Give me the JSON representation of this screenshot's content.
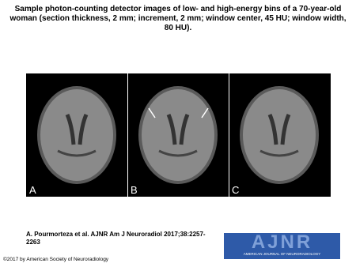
{
  "header": {
    "title": "Sample photon-counting detector images of low- and high-energy bins of a 70-year-old woman (section thickness, 2 mm; increment, 2 mm; window center, 45 HU; window width, 80 HU)."
  },
  "figure": {
    "panels": [
      "A",
      "B",
      "C"
    ]
  },
  "citation": "A. Pourmorteza et al. AJNR Am J Neuroradiol 2017;38:2257-2263",
  "logo": {
    "name": "AJNR",
    "subtitle": "AMERICAN JOURNAL OF NEURORADIOLOGY"
  },
  "copyright": "©2017 by American Society of Neuroradiology"
}
